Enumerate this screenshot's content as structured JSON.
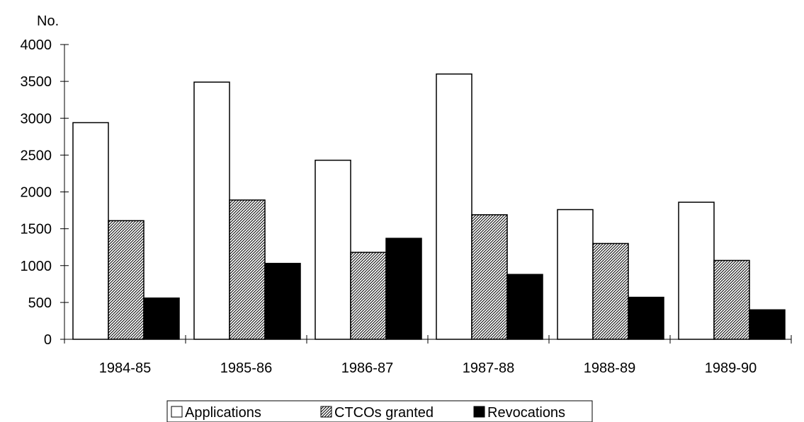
{
  "chart_data": {
    "type": "bar",
    "title": "",
    "xlabel": "",
    "ylabel": "No.",
    "ylim": [
      0,
      4000
    ],
    "yticks": [
      0,
      500,
      1000,
      1500,
      2000,
      2500,
      3000,
      3500,
      4000
    ],
    "grid": false,
    "legend_position": "bottom",
    "categories": [
      "1984-85",
      "1985-86",
      "1986-87",
      "1987-88",
      "1988-89",
      "1989-90"
    ],
    "series": [
      {
        "name": "Applications",
        "values": [
          2940,
          3490,
          2430,
          3600,
          1760,
          1860
        ],
        "fill": "white"
      },
      {
        "name": "CTCOs granted",
        "values": [
          1610,
          1890,
          1180,
          1690,
          1300,
          1070
        ],
        "fill": "hatched"
      },
      {
        "name": "Revocations",
        "values": [
          560,
          1030,
          1370,
          880,
          570,
          400
        ],
        "fill": "black"
      }
    ],
    "colors": {
      "applications": "#ffffff",
      "ctcos_granted": "#bdbdbd",
      "revocations": "#000000",
      "outline": "#000000"
    }
  }
}
